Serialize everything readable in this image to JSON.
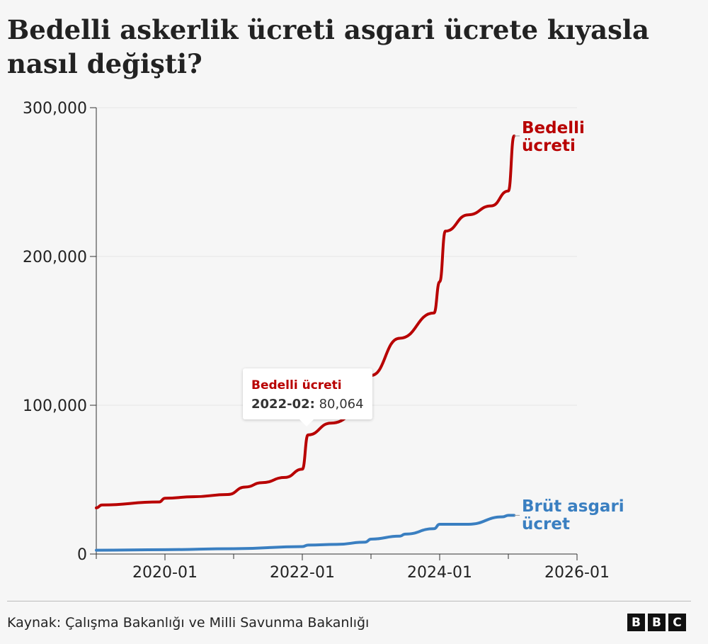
{
  "title": "Bedelli askerlik ücreti asgari ücrete kıyasla nasıl değişti?",
  "source": "Kaynak: Çalışma Bakanlığı ve Milli Savunma Bakanlığı",
  "logo": "BBC",
  "tooltip": {
    "series": "Bedelli ücreti",
    "date": "2022-02:",
    "value": "80,064"
  },
  "chart_data": {
    "type": "line",
    "title": "Bedelli askerlik ücreti asgari ücrete kıyasla nasıl değişti?",
    "xlim": [
      "2019-01",
      "2026-01"
    ],
    "ylim": [
      0,
      300000
    ],
    "grid": "horizontal",
    "x_ticks": [
      "2020-01",
      "2022-01",
      "2024-01",
      "2026-01"
    ],
    "y_ticks": [
      "0",
      "100,000",
      "200,000",
      "300,000"
    ],
    "y_tick_values": [
      0,
      100000,
      200000,
      300000
    ],
    "series": [
      {
        "name": "Bedelli ücreti",
        "label_lines": [
          "Bedelli",
          "ücreti"
        ],
        "color": "#b80000",
        "points": [
          [
            "2019-01",
            31000
          ],
          [
            "2019-02",
            33000
          ],
          [
            "2019-12",
            35000
          ],
          [
            "2020-01",
            37500
          ],
          [
            "2020-06",
            38500
          ],
          [
            "2020-12",
            40000
          ],
          [
            "2021-03",
            45000
          ],
          [
            "2021-06",
            48000
          ],
          [
            "2021-10",
            51500
          ],
          [
            "2022-01",
            57000
          ],
          [
            "2022-02",
            80064
          ],
          [
            "2022-06",
            88000
          ],
          [
            "2022-12",
            98000
          ],
          [
            "2023-01",
            120000
          ],
          [
            "2023-06",
            145000
          ],
          [
            "2023-12",
            162000
          ],
          [
            "2024-01",
            183000
          ],
          [
            "2024-02",
            217000
          ],
          [
            "2024-06",
            228000
          ],
          [
            "2024-10",
            234000
          ],
          [
            "2025-01",
            244000
          ],
          [
            "2025-02",
            281000
          ]
        ]
      },
      {
        "name": "Brüt asgari ücret",
        "label_lines": [
          "Brüt asgari",
          "ücret"
        ],
        "color": "#3a7fc1",
        "points": [
          [
            "2019-01",
            2558
          ],
          [
            "2020-01",
            2943
          ],
          [
            "2021-01",
            3577
          ],
          [
            "2022-01",
            5004
          ],
          [
            "2022-02",
            6000
          ],
          [
            "2022-07",
            6471
          ],
          [
            "2022-12",
            8000
          ],
          [
            "2023-01",
            10008
          ],
          [
            "2023-06",
            12000
          ],
          [
            "2023-07",
            13414
          ],
          [
            "2023-12",
            17000
          ],
          [
            "2024-01",
            20002
          ],
          [
            "2024-06",
            20002
          ],
          [
            "2024-12",
            25000
          ],
          [
            "2025-01",
            26005
          ],
          [
            "2025-02",
            26005
          ]
        ]
      }
    ]
  }
}
